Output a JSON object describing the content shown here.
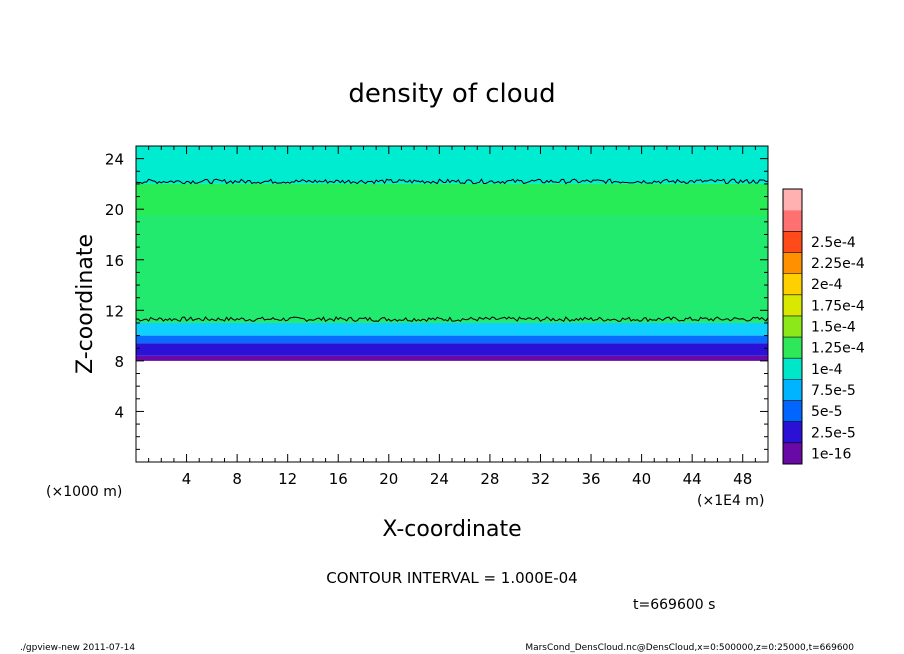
{
  "chart_data": {
    "type": "heatmap",
    "title": "density of cloud",
    "xlabel": "X-coordinate",
    "ylabel": "Z-coordinate",
    "x_unit_label": "(×1E4 m)",
    "y_unit_label": "(×1000 m)",
    "xlim": [
      0,
      50
    ],
    "ylim": [
      0,
      25
    ],
    "x_ticks": [
      4,
      8,
      12,
      16,
      20,
      24,
      28,
      32,
      36,
      40,
      44,
      48
    ],
    "y_ticks": [
      4,
      8,
      12,
      16,
      20,
      24
    ],
    "colorbar": {
      "labels": [
        "1e-16",
        "2.5e-5",
        "5e-5",
        "7.5e-5",
        "1e-4",
        "1.25e-4",
        "1.5e-4",
        "1.75e-4",
        "2e-4",
        "2.25e-4",
        "2.5e-4"
      ],
      "colors": [
        "#6a0aa6",
        "#2b11d6",
        "#0066ff",
        "#00b4ff",
        "#00e6c8",
        "#2ee85a",
        "#8de81a",
        "#d8e800",
        "#ffd000",
        "#ff9000",
        "#ff4a1a",
        "#ff7070",
        "#ffb0b0"
      ]
    },
    "field_bands": [
      {
        "z_from": 8.0,
        "z_to": 8.4,
        "value": 5e-06
      },
      {
        "z_from": 8.4,
        "z_to": 9.4,
        "value": 2.5e-05
      },
      {
        "z_from": 9.4,
        "z_to": 10.0,
        "value": 5e-05
      },
      {
        "z_from": 10.0,
        "z_to": 11.0,
        "value": 7.5e-05
      },
      {
        "z_from": 11.0,
        "z_to": 19.5,
        "value": 0.000125
      },
      {
        "z_from": 19.5,
        "z_to": 22.0,
        "value": 0.00011
      },
      {
        "z_from": 22.0,
        "z_to": 25.0,
        "value": 8.5e-05
      }
    ],
    "contour_levels": [
      {
        "value": 0.0001,
        "z": 11.3
      },
      {
        "value": 0.0001,
        "z": 22.2
      }
    ],
    "contour_interval": "CONTOUR INTERVAL = 1.000E-04",
    "time_label": "t=669600 s"
  },
  "footer": {
    "left": "./gpview-new  2011-07-14",
    "right": "MarsCond_DensCloud.nc@DensCloud,x=0:500000,z=0:25000,t=669600"
  }
}
